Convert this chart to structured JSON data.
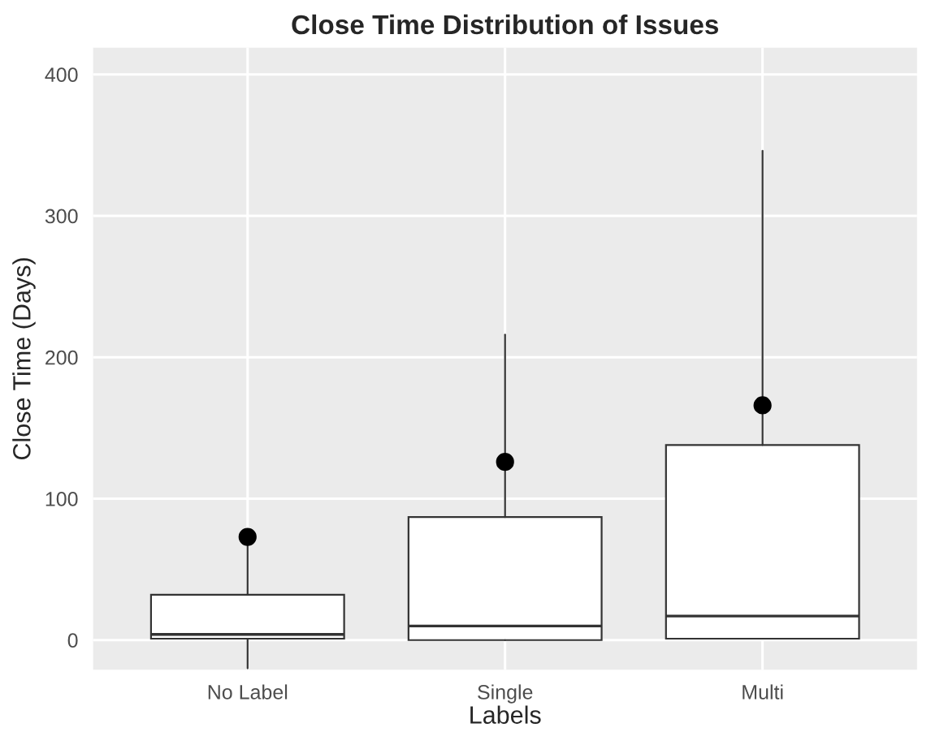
{
  "chart_data": {
    "type": "box",
    "title": "Close Time Distribution of Issues",
    "xlabel": "Labels",
    "ylabel": "Close Time (Days)",
    "categories": [
      "No Label",
      "Single",
      "Multi"
    ],
    "boxes": [
      {
        "low": -20,
        "q1": 1,
        "median": 4,
        "q3": 32,
        "high": 78,
        "mean": 73
      },
      {
        "low": 0,
        "q1": 0,
        "median": 10,
        "q3": 87,
        "high": 216,
        "mean": 126
      },
      {
        "low": 1,
        "q1": 1,
        "median": 17,
        "q3": 138,
        "high": 346,
        "mean": 166
      }
    ],
    "ylim": [
      -21,
      419
    ],
    "yticks": [
      0,
      100,
      200,
      300,
      400
    ],
    "grid": true
  }
}
